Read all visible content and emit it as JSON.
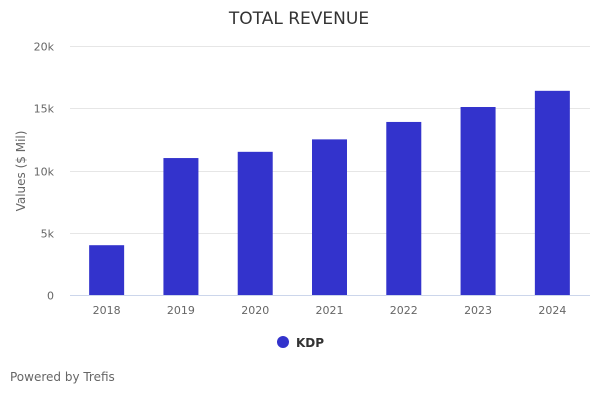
{
  "chart_data": {
    "type": "bar",
    "title": "TOTAL REVENUE",
    "xlabel": "",
    "ylabel": "Values ($ Mil)",
    "categories": [
      "2018",
      "2019",
      "2020",
      "2021",
      "2022",
      "2023",
      "2024"
    ],
    "series": [
      {
        "name": "KDP",
        "color": "#3333cc",
        "values": [
          4000,
          11000,
          11500,
          12500,
          13900,
          15100,
          16400
        ]
      }
    ],
    "ylim": [
      0,
      20000
    ],
    "yticks": [
      0,
      5000,
      10000,
      15000,
      20000
    ],
    "ytick_labels": [
      "0",
      "5k",
      "10k",
      "15k",
      "20k"
    ],
    "grid": true,
    "legend": "bottom-center"
  },
  "credit": "Powered by Trefis"
}
